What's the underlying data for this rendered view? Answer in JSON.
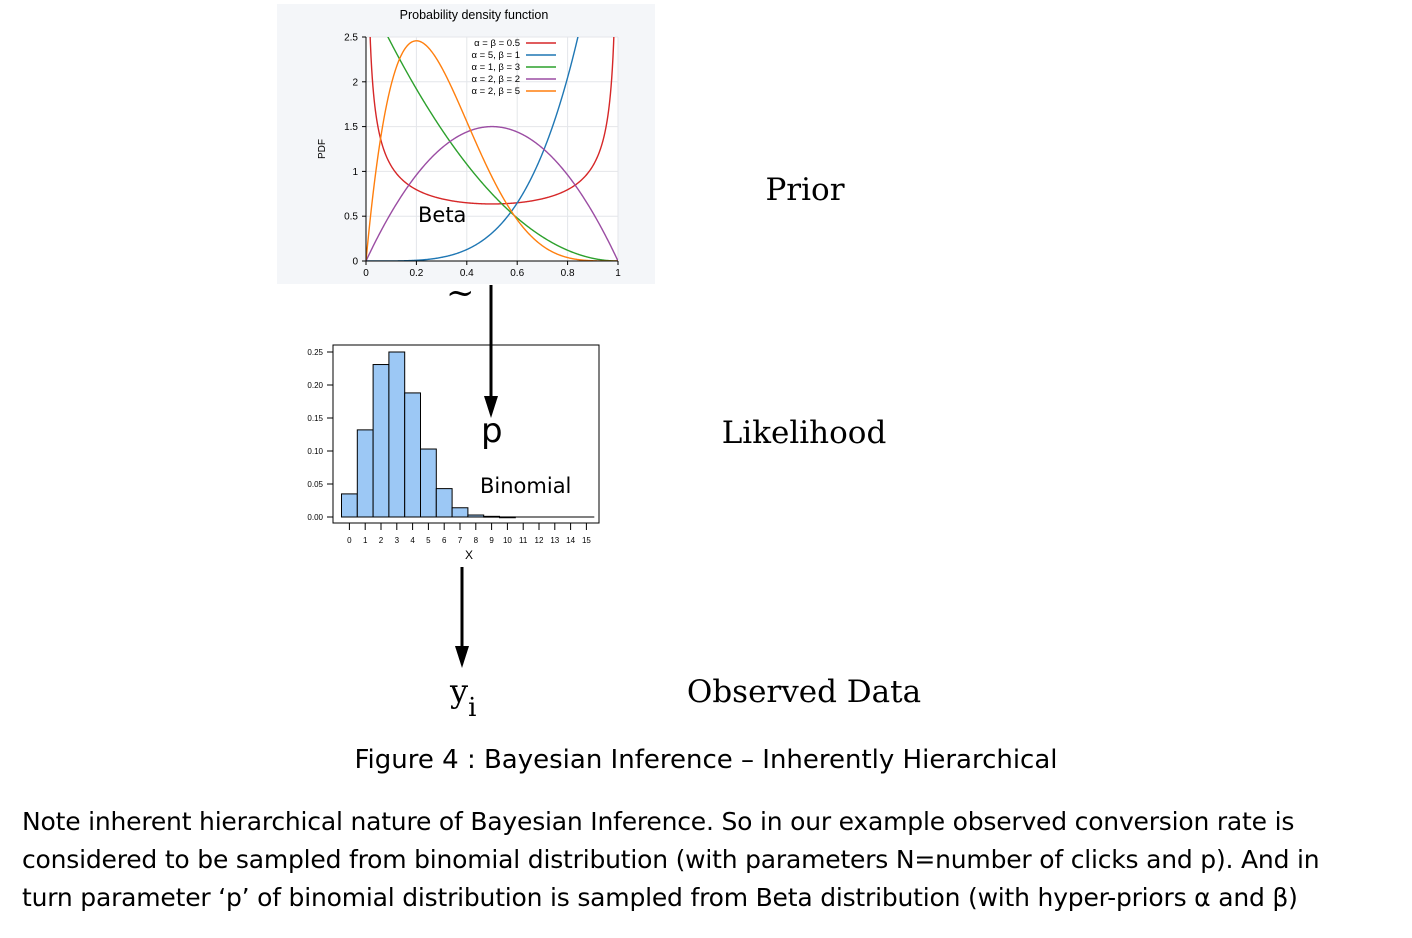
{
  "colors": {
    "series_red": "#d62728",
    "series_blue": "#1f77b4",
    "series_green": "#2ca02c",
    "series_purple": "#9b4da3",
    "series_orange": "#ff7f0e",
    "bar_fill": "#9cc8f5",
    "arrow": "#000000",
    "plot_bg": "#f4f6f9"
  },
  "stage_labels": {
    "prior": "Prior",
    "likelihood": "Likelihood",
    "observed": "Observed Data"
  },
  "symbols": {
    "tilde": "~",
    "p": "p",
    "y": "y",
    "y_sub": "i"
  },
  "caption": "Figure 4 : Bayesian Inference – Inherently Hierarchical",
  "note_lines": [
    "Note inherent hierarchical nature of Bayesian Inference. So in our example observed conversion rate is",
    "considered to be sampled from binomial distribution (with parameters N=number of clicks and p). And in",
    "turn parameter ‘p’ of binomial distribution is sampled from Beta distribution (with hyper-priors α and β)"
  ],
  "chart_data": [
    {
      "type": "line",
      "title": "Probability density function",
      "ylabel": "PDF",
      "xlabel": "",
      "annotation": "Beta",
      "xlim": [
        0,
        1
      ],
      "ylim": [
        0,
        2.5
      ],
      "x_ticks": [
        "0",
        "0.2",
        "0.4",
        "0.6",
        "0.8",
        "1"
      ],
      "y_ticks": [
        "0",
        "0.5",
        "1",
        "1.5",
        "2",
        "2.5"
      ],
      "grid": true,
      "legend_position": "top-right",
      "series": [
        {
          "name": "α = β = 0.5",
          "alpha": 0.5,
          "beta": 0.5,
          "color_key": "series_red"
        },
        {
          "name": "α = 5, β = 1",
          "alpha": 5,
          "beta": 1,
          "color_key": "series_blue"
        },
        {
          "name": "α = 1, β = 3",
          "alpha": 1,
          "beta": 3,
          "color_key": "series_green"
        },
        {
          "name": "α = 2, β = 2",
          "alpha": 2,
          "beta": 2,
          "color_key": "series_purple"
        },
        {
          "name": "α = 2, β = 5",
          "alpha": 2,
          "beta": 5,
          "color_key": "series_orange"
        }
      ]
    },
    {
      "type": "bar",
      "title": "",
      "xlabel": "X",
      "ylabel": "",
      "annotation": "Binomial",
      "ylim": [
        0,
        0.25
      ],
      "y_ticks": [
        "0.00",
        "0.05",
        "0.10",
        "0.15",
        "0.20",
        "0.25"
      ],
      "categories": [
        "0",
        "1",
        "2",
        "3",
        "4",
        "5",
        "6",
        "7",
        "8",
        "9",
        "10",
        "11",
        "12",
        "13",
        "14",
        "15"
      ],
      "values": [
        0.035,
        0.132,
        0.231,
        0.25,
        0.188,
        0.103,
        0.043,
        0.014,
        0.003,
        0.001,
        0.0001,
        0,
        0,
        0,
        0,
        0
      ]
    }
  ]
}
